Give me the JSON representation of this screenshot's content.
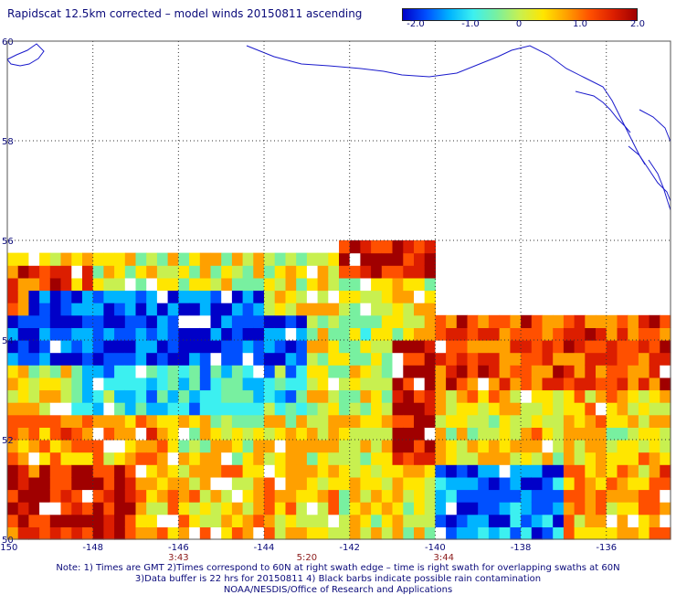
{
  "title": "Rapidscat 12.5km corrected – model winds 20150811 ascending",
  "colorbar": {
    "colors": [
      "#0000c8",
      "#0050ff",
      "#00b4ff",
      "#3cf0f0",
      "#78f0a0",
      "#c8f050",
      "#ffe600",
      "#ffa000",
      "#ff5000",
      "#dc1e00",
      "#a00000"
    ],
    "ticks": [
      "-2.0",
      "-1.0",
      "0",
      "1.0",
      "2.0"
    ]
  },
  "notes": [
    "Note: 1) Times are GMT 2)Times correspond to 60N at right swath edge – time is right swath for overlapping swaths at 60N",
    "3)Data buffer is 22 hrs for 20150811 4) Black barbs indicate possible rain contamination",
    "NOAA/NESDIS/Office of Research and Applications"
  ],
  "chart_data": {
    "type": "heatmap",
    "title": "Rapidscat 12.5km corrected – model winds 20150811 ascending",
    "xlim": [
      -150,
      -134.5
    ],
    "ylim": [
      50,
      60
    ],
    "x_tick_labels": [
      "-150",
      "-148",
      "-146",
      "-144",
      "-142",
      "-140",
      "-138",
      "-136"
    ],
    "y_tick_labels": [
      "50",
      "52",
      "54",
      "56",
      "58",
      "60"
    ],
    "grid": true,
    "colorbar_range": [
      -2.0,
      2.0
    ],
    "swath_times": [
      {
        "label": "3:43",
        "lon": -146.0
      },
      {
        "label": "5:20",
        "lon": -143.0
      },
      {
        "label": "3:44",
        "lon": -139.8
      }
    ],
    "cell_size_deg": 0.25,
    "swaths": [
      {
        "lon_range": [
          -150.0,
          -142.25
        ],
        "lat_range": [
          50.0,
          55.75
        ]
      },
      {
        "lon_range": [
          -142.25,
          -140.0
        ],
        "lat_range": [
          50.0,
          56.0
        ]
      },
      {
        "lon_range": [
          -140.0,
          -134.5
        ],
        "lat_range": [
          50.0,
          54.5
        ]
      }
    ],
    "anomaly_regions": [
      {
        "lon": [
          -150.0,
          -140.0
        ],
        "lat": [
          55.0,
          56.0
        ],
        "value": 0.2
      },
      {
        "lon": [
          -150.0,
          -148.0
        ],
        "lat": [
          54.5,
          55.5
        ],
        "value": 1.2
      },
      {
        "lon": [
          -149.5,
          -144.0
        ],
        "lat": [
          54.0,
          55.0
        ],
        "value": -1.7
      },
      {
        "lon": [
          -150.0,
          -146.0
        ],
        "lat": [
          53.4,
          54.3
        ],
        "value": -1.8
      },
      {
        "lon": [
          -147.0,
          -143.0
        ],
        "lat": [
          52.7,
          54.3
        ],
        "value": -1.7
      },
      {
        "lon": [
          -148.5,
          -143.0
        ],
        "lat": [
          52.3,
          53.3
        ],
        "value": -0.8
      },
      {
        "lon": [
          -150.0,
          -146.0
        ],
        "lat": [
          51.5,
          52.5
        ],
        "value": 0.8
      },
      {
        "lon": [
          -150.0,
          -147.0
        ],
        "lat": [
          50.0,
          51.5
        ],
        "value": 1.6
      },
      {
        "lon": [
          -147.0,
          -142.25
        ],
        "lat": [
          50.0,
          51.5
        ],
        "value": 0.6
      },
      {
        "lon": [
          -142.25,
          -140.0
        ],
        "lat": [
          55.25,
          56.0
        ],
        "value": 1.7
      },
      {
        "lon": [
          -141.0,
          -140.0
        ],
        "lat": [
          51.0,
          54.0
        ],
        "value": 1.8
      },
      {
        "lon": [
          -142.25,
          -141.0
        ],
        "lat": [
          52.5,
          55.0
        ],
        "value": 0.0
      },
      {
        "lon": [
          -142.25,
          -140.0
        ],
        "lat": [
          50.0,
          51.5
        ],
        "value": 0.3
      },
      {
        "lon": [
          -140.0,
          -134.5
        ],
        "lat": [
          53.0,
          54.5
        ],
        "value": 1.3
      },
      {
        "lon": [
          -140.0,
          -134.5
        ],
        "lat": [
          51.5,
          53.0
        ],
        "value": 0.4
      },
      {
        "lon": [
          -140.0,
          -137.0
        ],
        "lat": [
          50.0,
          51.5
        ],
        "value": -1.5
      },
      {
        "lon": [
          -137.0,
          -134.5
        ],
        "lat": [
          50.0,
          51.5
        ],
        "value": 0.8
      }
    ]
  }
}
